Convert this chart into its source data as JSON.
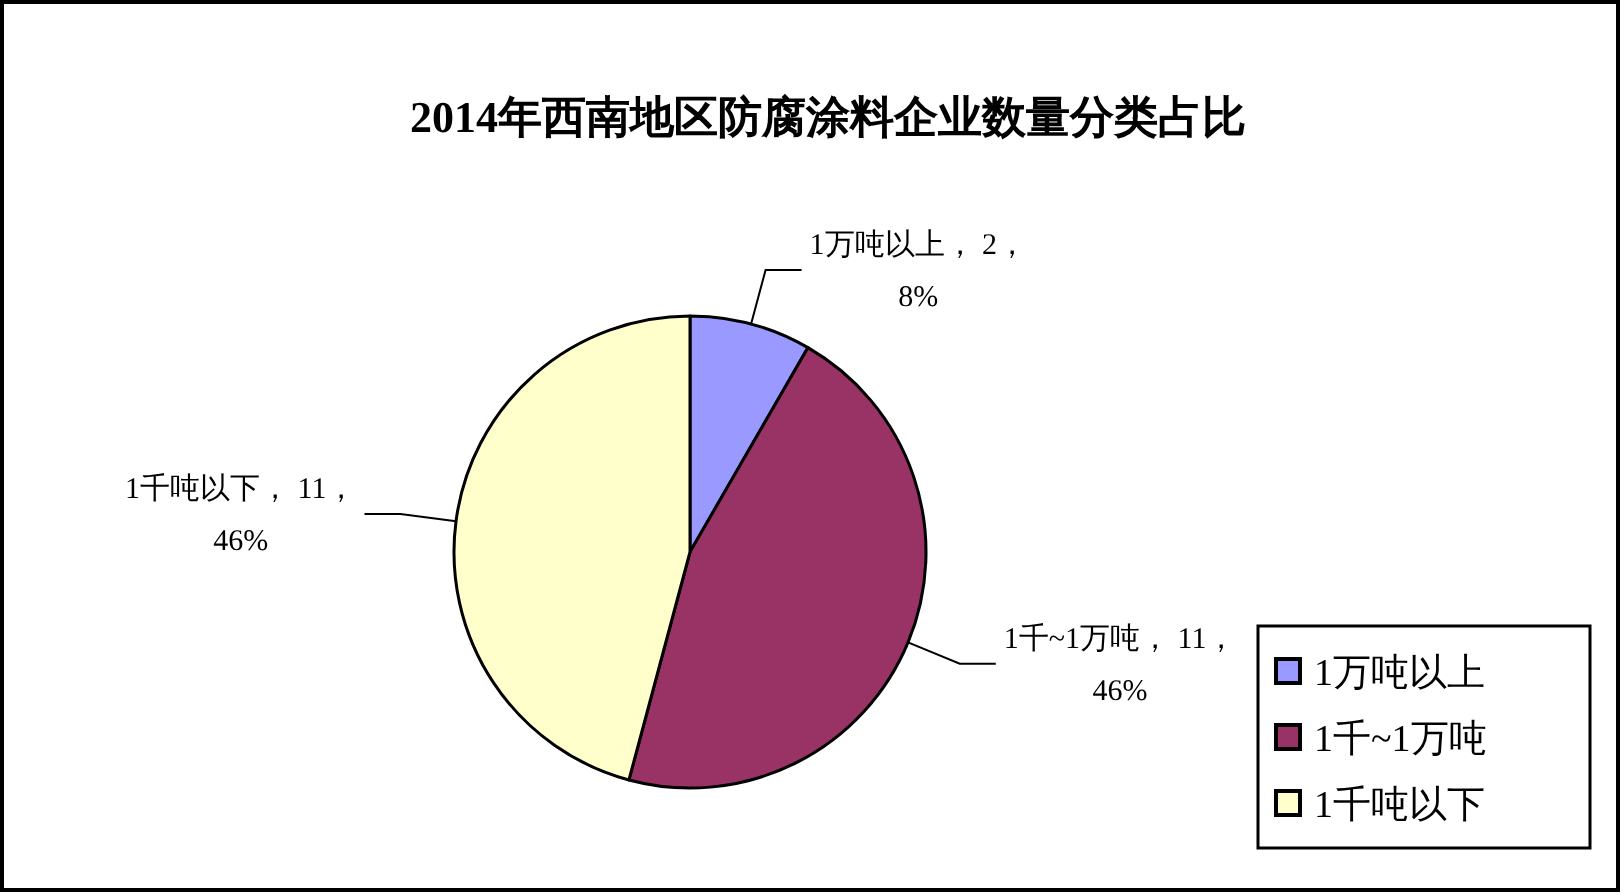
{
  "chart_data": {
    "type": "pie",
    "title": "2014年西南地区防腐涂料企业数量分类占比",
    "categories": [
      "1万吨以上",
      "1千~1万吨",
      "1千吨以下"
    ],
    "values": [
      2,
      11,
      11
    ],
    "colors": [
      "#9999ff",
      "#993366",
      "#ffffcc"
    ],
    "value_labels": [
      "1万吨以上， 2，\n8%",
      "1千~1万吨， 11，\n46%",
      "1千吨以下， 11，\n46%"
    ],
    "legend": "bottom right"
  }
}
